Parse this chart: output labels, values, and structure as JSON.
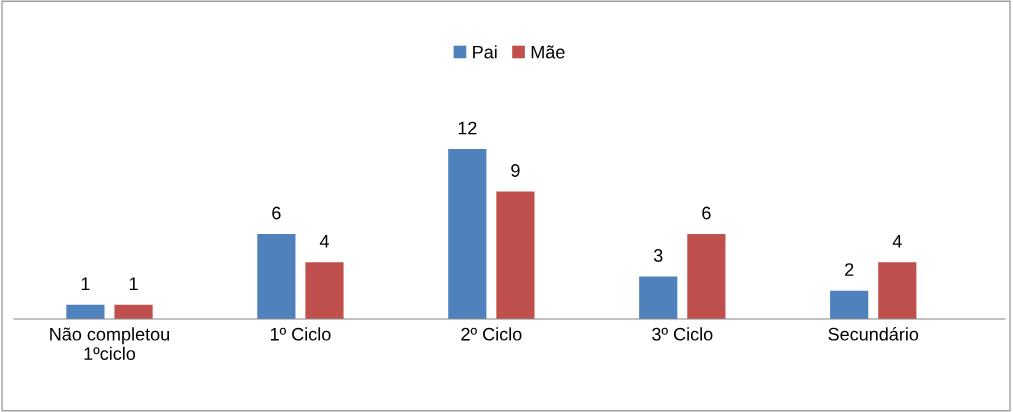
{
  "chart_data": {
    "type": "bar",
    "categories": [
      "Não completou\n1ºciclo",
      "1º Ciclo",
      "2º Ciclo",
      "3º Ciclo",
      "Secundário"
    ],
    "series": [
      {
        "name": "Pai",
        "color": "#4f81bd",
        "values": [
          1,
          6,
          12,
          3,
          2
        ]
      },
      {
        "name": "Mãe",
        "color": "#c0504d",
        "values": [
          1,
          4,
          9,
          6,
          4
        ]
      }
    ],
    "data_labels": true,
    "legend": "top",
    "grid": false
  }
}
